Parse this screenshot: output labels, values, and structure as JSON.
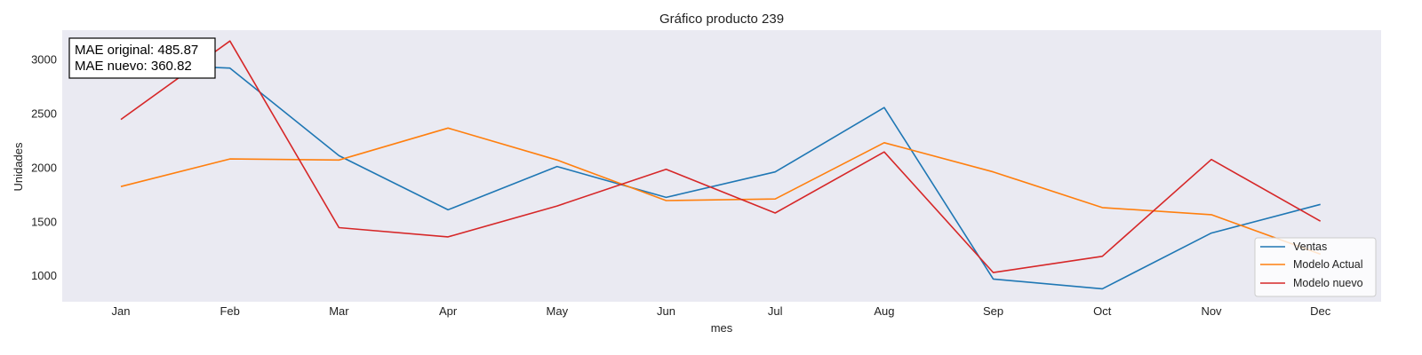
{
  "chart_data": {
    "type": "line",
    "title": "Gráfico producto 239",
    "xlabel": "mes",
    "ylabel": "Unidades",
    "categories": [
      "Jan",
      "Feb",
      "Mar",
      "Apr",
      "May",
      "Jun",
      "Jul",
      "Aug",
      "Sep",
      "Oct",
      "Nov",
      "Dec"
    ],
    "ylim": [
      760,
      3270
    ],
    "yticks": [
      1000,
      1500,
      2000,
      2500,
      3000
    ],
    "grid": false,
    "legend_position": "bottom-right",
    "series": [
      {
        "name": "Ventas",
        "color": "#1f77b4",
        "values": [
          2960,
          2920,
          2110,
          1610,
          2010,
          1725,
          1960,
          2555,
          970,
          880,
          1395,
          1660
        ]
      },
      {
        "name": "Modelo Actual",
        "color": "#ff7f0e",
        "values": [
          1825,
          2080,
          2070,
          2365,
          2070,
          1695,
          1710,
          2230,
          1960,
          1630,
          1565,
          1200
        ]
      },
      {
        "name": "Modelo nuevo",
        "color": "#d62728",
        "values": [
          2445,
          3170,
          1445,
          1360,
          1645,
          1985,
          1580,
          2145,
          1030,
          1180,
          2075,
          1505
        ]
      }
    ],
    "annotations": [
      "MAE original: 485.87",
      "MAE nuevo: 360.82"
    ]
  }
}
